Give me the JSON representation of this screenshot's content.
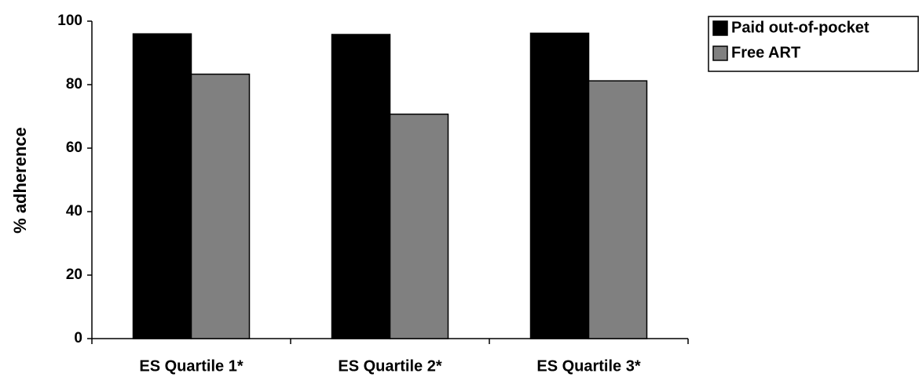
{
  "chart_data": {
    "type": "bar",
    "title": "",
    "xlabel": "",
    "ylabel": "% adherence",
    "ylim": [
      0,
      100
    ],
    "yticks": [
      0,
      20,
      40,
      60,
      80,
      100
    ],
    "categories": [
      "ES Quartile 1*",
      "ES Quartile 2*",
      "ES Quartile 3*"
    ],
    "series": [
      {
        "name": "Paid out-of-pocket",
        "color": "#000000",
        "values": [
          96,
          95.8,
          96.2
        ]
      },
      {
        "name": "Free ART",
        "color": "#808080",
        "values": [
          83.3,
          70.7,
          81.2
        ]
      }
    ],
    "grid": false,
    "legend": "top-right"
  }
}
